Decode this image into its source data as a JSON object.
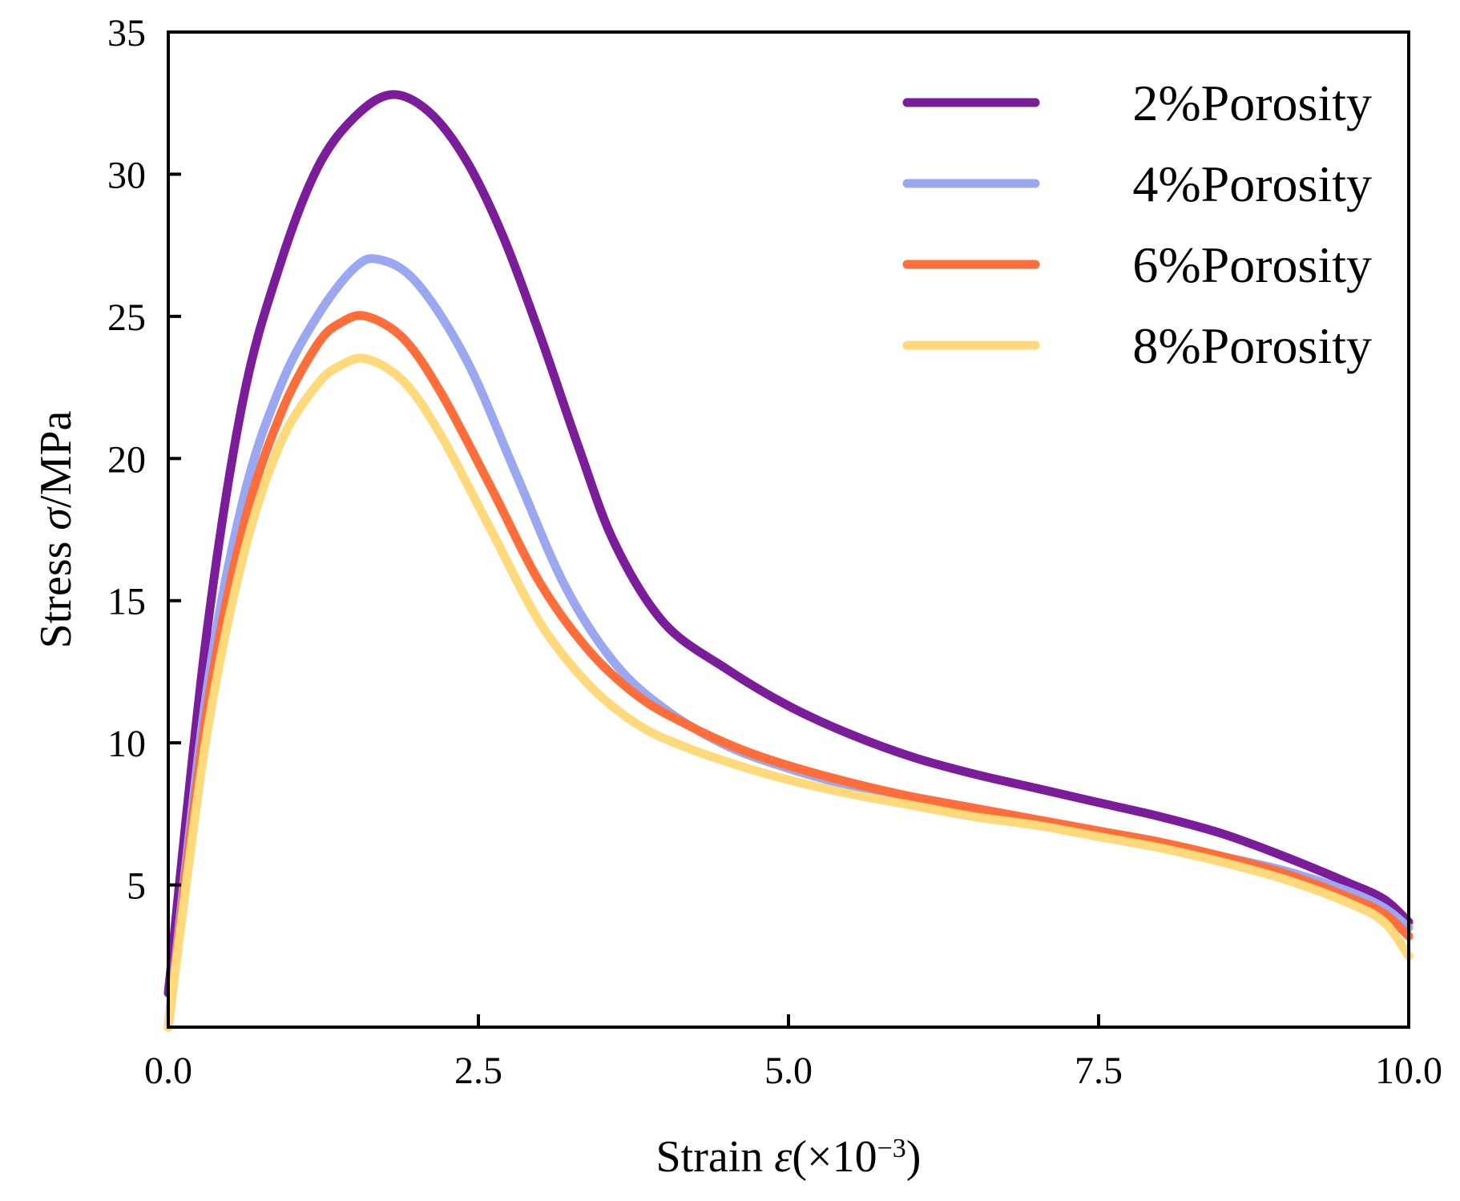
{
  "chart_data": {
    "type": "line",
    "title": "",
    "xlabel": "Strain ε(×10⁻³)",
    "xlabel_parts": {
      "main": "Strain ",
      "symbol": "ε",
      "open": "(×10",
      "exponent": "−3",
      "close": ")"
    },
    "ylabel": "Stress σ/MPa",
    "ylabel_parts": {
      "main": "Stress ",
      "symbol": "σ",
      "unit": "/MPa"
    },
    "xlim": [
      0,
      10
    ],
    "ylim": [
      0,
      35
    ],
    "xticks": [
      0.0,
      2.5,
      5.0,
      7.5,
      10.0
    ],
    "xtick_labels": [
      "0.0",
      "2.5",
      "5.0",
      "7.5",
      "10.0"
    ],
    "yticks": [
      5,
      10,
      15,
      20,
      25,
      30,
      35
    ],
    "ytick_labels": [
      "5",
      "10",
      "15",
      "20",
      "25",
      "30",
      "35"
    ],
    "grid": false,
    "legend_position": "top-right",
    "series": [
      {
        "name": "2%Porosity",
        "color": "#7B1D9A",
        "x": [
          0,
          0.3,
          0.6,
          0.9,
          1.2,
          1.5,
          1.8,
          2.1,
          2.4,
          2.7,
          3.0,
          3.3,
          3.6,
          4.0,
          4.5,
          5.0,
          5.5,
          6.0,
          6.5,
          7.0,
          7.5,
          8.0,
          8.5,
          9.0,
          9.5,
          9.8,
          10.0
        ],
        "y": [
          1.2,
          13.5,
          22.0,
          26.8,
          30.2,
          32.0,
          32.8,
          32.2,
          30.5,
          27.8,
          24.3,
          20.5,
          17.0,
          14.2,
          12.6,
          11.3,
          10.3,
          9.5,
          8.9,
          8.4,
          7.9,
          7.4,
          6.8,
          6.0,
          5.1,
          4.5,
          3.7
        ]
      },
      {
        "name": "4%Porosity",
        "color": "#99A8F0",
        "x": [
          0,
          0.3,
          0.6,
          0.9,
          1.2,
          1.5,
          1.7,
          2.0,
          2.4,
          2.8,
          3.2,
          3.6,
          4.0,
          4.5,
          5.0,
          5.5,
          6.0,
          6.5,
          7.0,
          7.5,
          8.0,
          8.5,
          9.0,
          9.5,
          9.8,
          10.0
        ],
        "y": [
          0,
          11.5,
          18.5,
          22.5,
          25.0,
          26.7,
          27.0,
          26.2,
          23.5,
          19.5,
          15.5,
          12.8,
          11.2,
          9.9,
          9.1,
          8.5,
          8.1,
          7.7,
          7.3,
          6.9,
          6.5,
          6.0,
          5.5,
          4.8,
          4.2,
          3.5
        ]
      },
      {
        "name": "6%Porosity",
        "color": "#FF6D3A",
        "x": [
          0,
          0.3,
          0.6,
          0.9,
          1.2,
          1.4,
          1.6,
          1.9,
          2.2,
          2.6,
          3.0,
          3.4,
          3.8,
          4.2,
          4.6,
          5.0,
          5.5,
          6.0,
          6.5,
          7.0,
          7.5,
          8.0,
          8.5,
          9.0,
          9.5,
          9.8,
          10.0
        ],
        "y": [
          0,
          10.8,
          17.5,
          21.5,
          24.0,
          24.8,
          25.0,
          24.2,
          22.3,
          19.0,
          15.6,
          13.2,
          11.6,
          10.6,
          9.8,
          9.2,
          8.6,
          8.1,
          7.7,
          7.3,
          6.9,
          6.5,
          6.0,
          5.4,
          4.6,
          4.0,
          3.2
        ]
      },
      {
        "name": "8%Porosity",
        "color": "#FFD97A",
        "x": [
          0,
          0.3,
          0.6,
          0.9,
          1.2,
          1.4,
          1.6,
          1.9,
          2.2,
          2.6,
          3.0,
          3.4,
          3.8,
          4.2,
          4.6,
          5.0,
          5.5,
          6.0,
          6.5,
          7.0,
          7.5,
          8.0,
          8.5,
          9.0,
          9.5,
          9.8,
          10.0
        ],
        "y": [
          0,
          10.0,
          16.5,
          20.5,
          22.6,
          23.3,
          23.5,
          22.7,
          20.8,
          17.5,
          14.2,
          12.0,
          10.6,
          9.8,
          9.2,
          8.7,
          8.2,
          7.8,
          7.4,
          7.1,
          6.7,
          6.3,
          5.8,
          5.2,
          4.4,
          3.7,
          2.5
        ]
      }
    ]
  }
}
